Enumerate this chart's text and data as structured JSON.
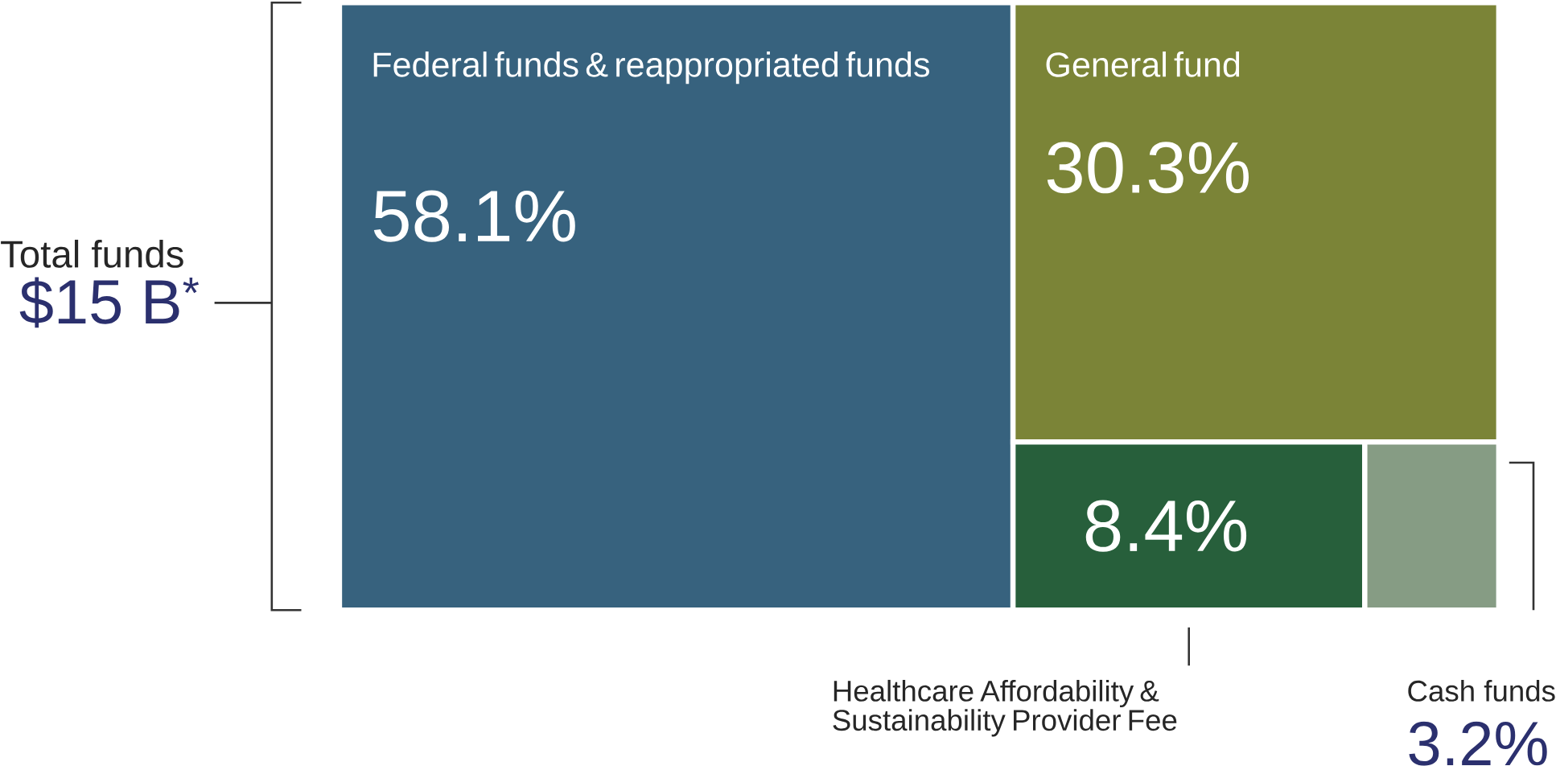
{
  "chart_data": {
    "type": "other",
    "categories": [
      "Federal funds & reappropriated funds",
      "General fund",
      "Healthcare Affordability & Sustainability Provider Fee",
      "Cash funds"
    ],
    "values": [
      58.1,
      30.3,
      8.4,
      3.2
    ],
    "value_labels": [
      "58.1%",
      "30.3%",
      "8.4%",
      "3.2%"
    ],
    "colors": [
      "#37627e",
      "#7b8437",
      "#275f3b",
      "#869c84"
    ],
    "annotations": [
      "Total funds",
      "$15 B$^{*}$"
    ]
  }
}
